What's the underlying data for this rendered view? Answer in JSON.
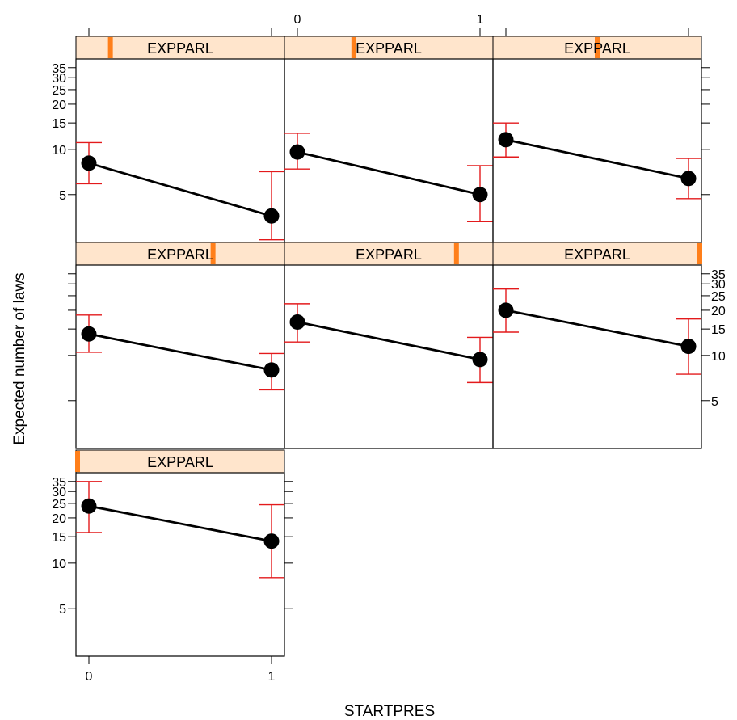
{
  "chart_data": {
    "type": "line",
    "layout": "trellis 3 columns x 3 rows, panels filled from bottom-left",
    "xlabel": "STARTPRES",
    "ylabel": "Expected number of laws",
    "x_ticks": [
      "0",
      "1"
    ],
    "y_scale": "log",
    "y_ticks": [
      5,
      10,
      15,
      20,
      25,
      30,
      35
    ],
    "ylim": [
      2.4,
      40
    ],
    "strip_color": "#ffe5cc",
    "indicator_color": "#ff7f1a",
    "line_color": "#000000",
    "errorbar_color": "#e31a1c",
    "panels": [
      {
        "strip": "EXPPARL",
        "level": 0.0,
        "x": [
          "0",
          "1"
        ],
        "fit": [
          24.0,
          14.0
        ],
        "lower": [
          16.0,
          8.0
        ],
        "upper": [
          35.0,
          24.5
        ]
      },
      {
        "strip": "EXPPARL",
        "level": 0.16,
        "x": [
          "0",
          "1"
        ],
        "fit": [
          8.1,
          3.6
        ],
        "lower": [
          5.9,
          2.5
        ],
        "upper": [
          11.1,
          7.1
        ]
      },
      {
        "strip": "EXPPARL",
        "level": 0.33,
        "x": [
          "0",
          "1"
        ],
        "fit": [
          9.6,
          5.0
        ],
        "lower": [
          7.4,
          3.3
        ],
        "upper": [
          12.8,
          7.8
        ]
      },
      {
        "strip": "EXPPARL",
        "level": 0.5,
        "x": [
          "0",
          "1"
        ],
        "fit": [
          11.6,
          6.4
        ],
        "lower": [
          8.9,
          4.7
        ],
        "upper": [
          15.0,
          8.7
        ]
      },
      {
        "strip": "EXPPARL",
        "level": 0.66,
        "x": [
          "0",
          "1"
        ],
        "fit": [
          13.9,
          8.0
        ],
        "lower": [
          10.5,
          5.9
        ],
        "upper": [
          18.6,
          10.3
        ]
      },
      {
        "strip": "EXPPARL",
        "level": 0.83,
        "x": [
          "0",
          "1"
        ],
        "fit": [
          16.7,
          9.4
        ],
        "lower": [
          12.3,
          6.6
        ],
        "upper": [
          22.1,
          13.2
        ]
      },
      {
        "strip": "EXPPARL",
        "level": 1.0,
        "x": [
          "0",
          "1"
        ],
        "fit": [
          20.0,
          11.5
        ],
        "lower": [
          14.3,
          7.5
        ],
        "upper": [
          27.7,
          17.5
        ]
      }
    ]
  }
}
